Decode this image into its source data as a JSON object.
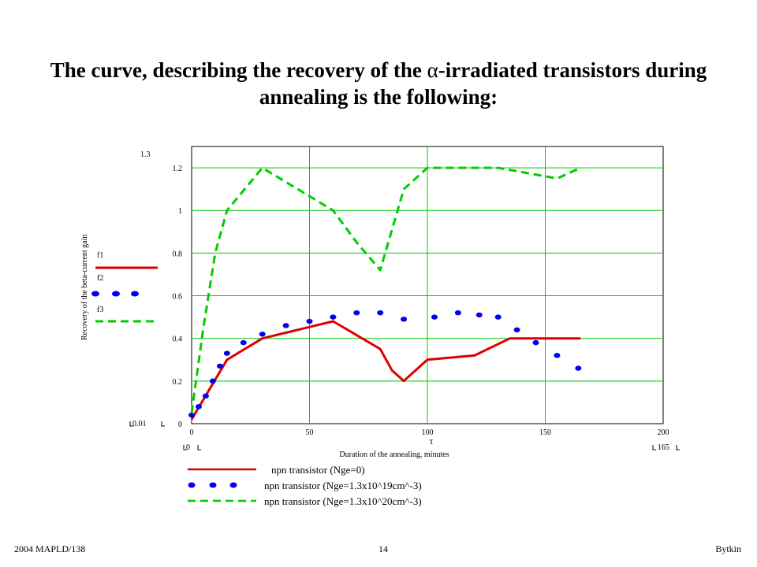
{
  "slide": {
    "title_part1": "The curve, describing the recovery of the ",
    "title_alpha": "α",
    "title_part2": "-irradiated transistors during annealing is the following:",
    "footer_left": "2004 MAPLD/138",
    "footer_center": "14",
    "footer_right": "Bytkin"
  },
  "chart_data": {
    "type": "line",
    "ylabel": "Recovery of the beta-current gain",
    "xlabel": "Duration of the annealing, minutes",
    "x_var": "τ",
    "xlim": [
      0,
      200
    ],
    "ylim": [
      0,
      1.3
    ],
    "x_ticks": [
      "0",
      "50",
      "100",
      "150",
      "200"
    ],
    "y_ticks": [
      "0",
      "0.2",
      "0.4",
      "0.6",
      "0.8",
      "1",
      "1.2"
    ],
    "y_range_labels": [
      "1.3",
      "0.01"
    ],
    "x_range_labels": [
      "0",
      "165"
    ],
    "grid": true,
    "grid_color": "#00cc00",
    "trace_labels": [
      "f1",
      "f2",
      "f3"
    ],
    "series": [
      {
        "name": "npn transistor (Nge=0)",
        "color": "#dd0000",
        "style": "solid",
        "x": [
          0,
          15,
          30,
          60,
          80,
          85,
          90,
          100,
          120,
          135,
          165
        ],
        "y": [
          0.02,
          0.3,
          0.4,
          0.48,
          0.35,
          0.25,
          0.2,
          0.3,
          0.32,
          0.4,
          0.4
        ]
      },
      {
        "name": "npn transistor (Nge=1.3x10^19cm^-3)",
        "color": "#0000ee",
        "style": "dots",
        "x": [
          0,
          3,
          6,
          9,
          12,
          15,
          22,
          30,
          40,
          50,
          60,
          70,
          80,
          90,
          103,
          113,
          122,
          130,
          138,
          146,
          155,
          164
        ],
        "y": [
          0.04,
          0.08,
          0.13,
          0.2,
          0.27,
          0.33,
          0.38,
          0.42,
          0.46,
          0.48,
          0.5,
          0.52,
          0.52,
          0.49,
          0.5,
          0.52,
          0.51,
          0.5,
          0.44,
          0.38,
          0.32,
          0.26
        ]
      },
      {
        "name": "npn transistor (Nge=1.3x10^20cm^-3)",
        "color": "#00cc00",
        "style": "dashed",
        "x": [
          0,
          5,
          10,
          15,
          30,
          45,
          60,
          70,
          80,
          90,
          100,
          110,
          130,
          155,
          165
        ],
        "y": [
          0.05,
          0.45,
          0.8,
          1.0,
          1.2,
          1.1,
          1.0,
          0.85,
          0.72,
          1.1,
          1.2,
          1.2,
          1.2,
          1.15,
          1.2
        ]
      }
    ]
  }
}
